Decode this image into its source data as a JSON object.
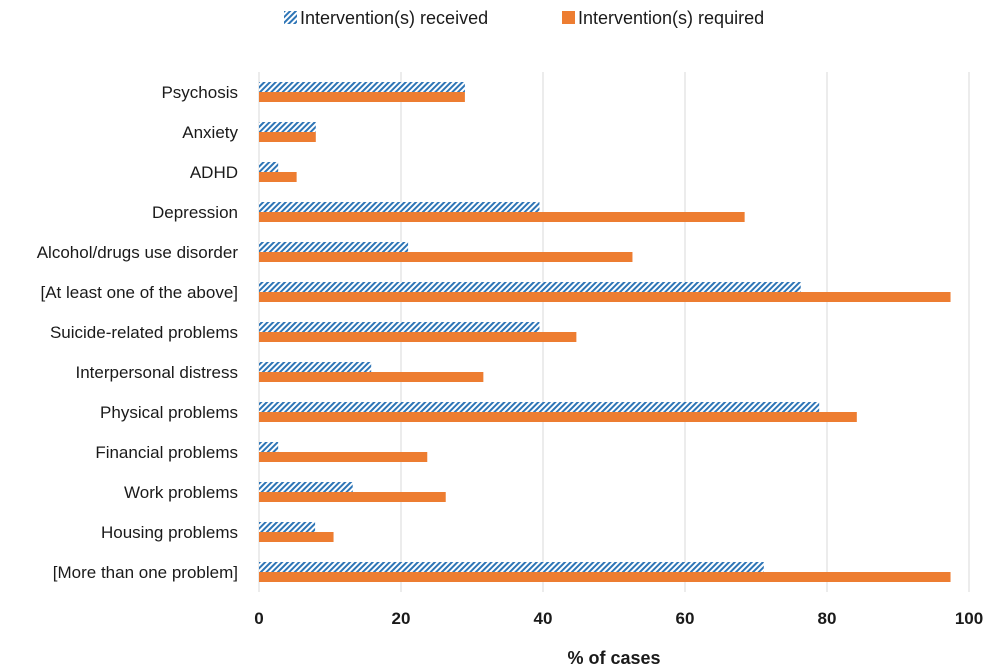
{
  "chart_data": {
    "type": "bar",
    "orientation": "horizontal",
    "categories": [
      "Psychosis",
      "Anxiety",
      "ADHD",
      "Depression",
      "Alcohol/drugs use disorder",
      "[At least one of the above]",
      "Suicide-related problems",
      "Interpersonal distress",
      "Physical problems",
      "Financial problems",
      "Work problems",
      "Housing problems",
      "[More than one problem]"
    ],
    "series": [
      {
        "name": "Intervention(s) received",
        "pattern": "hatched",
        "color": "#2e75b6",
        "values": [
          29,
          8,
          2.7,
          39.5,
          21,
          76.3,
          39.5,
          15.8,
          78.9,
          2.7,
          13.2,
          7.9,
          71.1
        ]
      },
      {
        "name": "Intervention(s) required",
        "pattern": "solid",
        "color": "#ed7d31",
        "values": [
          29,
          8,
          5.3,
          68.4,
          52.6,
          97.4,
          44.7,
          31.6,
          84.2,
          23.7,
          26.3,
          10.5,
          97.4
        ]
      }
    ],
    "xlabel": "% of cases",
    "xlim": [
      0,
      100
    ],
    "xticks": [
      "0",
      "20",
      "40",
      "60",
      "80",
      "100"
    ],
    "grid": "vertical",
    "legend_position": "top-center"
  }
}
